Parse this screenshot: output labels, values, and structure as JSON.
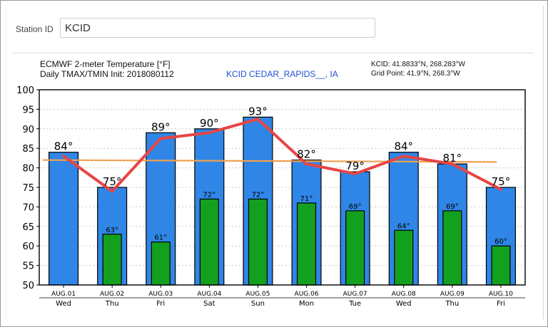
{
  "station": {
    "label": "Station ID",
    "value": "KCID"
  },
  "header": {
    "title_line1": "ECMWF 2-meter Temperature [°F]",
    "title_line2": "Daily TMAX/TMIN Init: 2018080112",
    "location": "KCID CEDAR_RAPIDS__, IA",
    "coords_station": "KCID: 41.8833°N, 268.283°W",
    "coords_grid": "Grid Point: 41.9°N, 268.3°W"
  },
  "colors": {
    "max_bar": "#2f86e6",
    "min_bar": "#14a01f",
    "trend_line": "#e64545",
    "mean_line": "#f0a050"
  },
  "chart_data": {
    "type": "bar",
    "categories": [
      "AUG.01",
      "AUG.02",
      "AUG.03",
      "AUG.04",
      "AUG.05",
      "AUG.06",
      "AUG.07",
      "AUG.08",
      "AUG.09",
      "AUG.10"
    ],
    "weekdays": [
      "Wed",
      "Thu",
      "Fri",
      "Sat",
      "Sun",
      "Mon",
      "Tue",
      "Wed",
      "Thu",
      "Fri"
    ],
    "series": [
      {
        "values": [
          84,
          75,
          89,
          90,
          93,
          82,
          79,
          84,
          81,
          75
        ]
      },
      {
        "values": [
          null,
          63,
          61,
          72,
          72,
          71,
          69,
          64,
          69,
          60
        ]
      }
    ],
    "max_labels": [
      "84°",
      "75°",
      "89°",
      "90°",
      "93°",
      "82°",
      "79°",
      "84°",
      "81°",
      "75°"
    ],
    "min_labels": [
      "",
      "63°",
      "61°",
      "72°",
      "72°",
      "71°",
      "69°",
      "64°",
      "69°",
      "60°"
    ],
    "trend_line": [
      83,
      74,
      87.5,
      89,
      92.5,
      81,
      78.5,
      83,
      81,
      74.5
    ],
    "mean_line": [
      82,
      81.5
    ],
    "yticks": [
      50,
      55,
      60,
      65,
      70,
      75,
      80,
      85,
      90,
      95,
      100
    ],
    "ylim": [
      50,
      100
    ],
    "grid": true
  }
}
